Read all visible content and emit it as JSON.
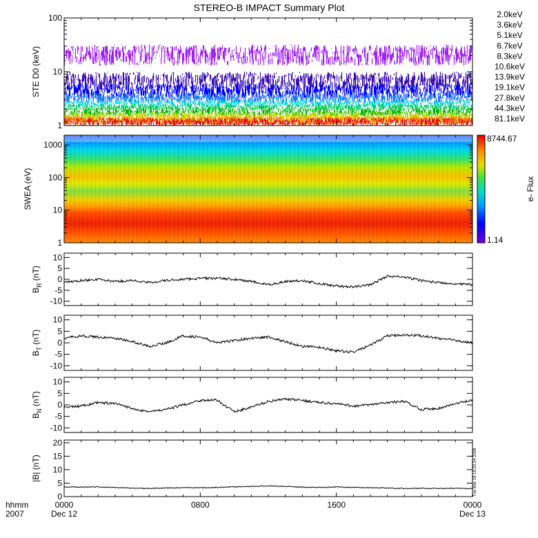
{
  "chart_data": {
    "title": "STEREO-B IMPACT Summary Plot",
    "x_axis": {
      "label_top": "hhmm",
      "label_bottom": "2007",
      "ticks": [
        {
          "hours": 0,
          "label": "0000",
          "sublabel": "Dec 12"
        },
        {
          "hours": 8,
          "label": "0800",
          "sublabel": ""
        },
        {
          "hours": 16,
          "label": "1600",
          "sublabel": ""
        },
        {
          "hours": 24,
          "label": "0000",
          "sublabel": "Dec 13"
        }
      ],
      "range_hours": [
        0,
        24
      ]
    },
    "stamp": "Tue Mar 18 16:20:24 2008",
    "panels": [
      {
        "id": "ste",
        "type": "line",
        "ylabel": "STE D0 (keV)",
        "yscale": "log",
        "ylim": [
          1,
          100
        ],
        "yticks": [
          1,
          10,
          100
        ],
        "ytick_labels": [
          "1",
          "10",
          "100"
        ],
        "series": [
          {
            "name": "2.0keV",
            "color": "#a020f0",
            "band": [
              13,
              32
            ]
          },
          {
            "name": "3.6keV",
            "color": "#3c10b0",
            "band": [
              4.5,
              10
            ]
          },
          {
            "name": "5.1keV",
            "color": "#0000ff",
            "band": [
              3.2,
              6
            ]
          },
          {
            "name": "6.7keV",
            "color": "#1a78ff",
            "band": [
              2.6,
              4
            ]
          },
          {
            "name": "8.3keV",
            "color": "#00d8d8",
            "band": [
              2.2,
              3
            ]
          },
          {
            "name": "10.6keV",
            "color": "#00c850",
            "band": [
              1.9,
              2.5
            ]
          },
          {
            "name": "13.9keV",
            "color": "#00b000",
            "band": [
              1.5,
              2.1
            ]
          },
          {
            "name": "19.1keV",
            "color": "#a8d800",
            "band": [
              1.3,
              1.8
            ]
          },
          {
            "name": "27.8keV",
            "color": "#f0c800",
            "band": [
              1.1,
              1.6
            ]
          },
          {
            "name": "44.3keV",
            "color": "#ff8000",
            "band": [
              1.0,
              1.5
            ]
          },
          {
            "name": "81.1keV",
            "color": "#e01010",
            "band": [
              1.0,
              1.4
            ]
          }
        ]
      },
      {
        "id": "swea",
        "type": "heatmap",
        "ylabel": "SWEA (eV)",
        "yscale": "log",
        "ylim": [
          1,
          2000
        ],
        "yticks": [
          1,
          10,
          100,
          1000
        ],
        "ytick_labels": [
          "1",
          "10",
          "100",
          "1000"
        ],
        "colorbar": {
          "label": "e- Flux",
          "max_label": "8744.67",
          "min_label": "1.14",
          "max": 8744.67,
          "min": 1.14
        }
      },
      {
        "id": "br",
        "type": "line",
        "ylabel": "B_R (nT)",
        "ylim": [
          -12,
          12
        ],
        "yticks": [
          -10,
          -5,
          0,
          5,
          10
        ],
        "ytick_labels": [
          "-10",
          "-5",
          "0",
          "5",
          "10"
        ],
        "x": [
          0,
          1,
          2,
          3,
          4,
          5,
          6,
          7,
          8,
          9,
          10,
          11,
          12,
          13,
          14,
          15,
          16,
          17,
          18,
          19,
          20,
          21,
          22,
          23,
          24
        ],
        "values": [
          -1.5,
          -0.5,
          0,
          -1,
          -0.5,
          -1.5,
          -0.5,
          0,
          0.5,
          0.5,
          0,
          -1,
          -2.5,
          -1,
          -0.5,
          -2,
          -3,
          -3.5,
          -2.5,
          1.5,
          1,
          -0.5,
          -1.5,
          -2,
          -2.5
        ]
      },
      {
        "id": "bt",
        "type": "line",
        "ylabel": "B_T (nT)",
        "ylim": [
          -12,
          12
        ],
        "yticks": [
          -10,
          -5,
          0,
          5,
          10
        ],
        "ytick_labels": [
          "-10",
          "-5",
          "0",
          "5",
          "10"
        ],
        "x": [
          0,
          1,
          2,
          3,
          4,
          5,
          6,
          7,
          8,
          9,
          10,
          11,
          12,
          13,
          14,
          15,
          16,
          17,
          18,
          19,
          20,
          21,
          22,
          23,
          24
        ],
        "values": [
          2,
          3,
          2.5,
          2,
          0.5,
          -1.5,
          0,
          3,
          2.5,
          0,
          1,
          2,
          2.5,
          0.5,
          -1.5,
          -2,
          -3.5,
          -4,
          -1,
          3,
          3.5,
          3,
          2,
          1,
          0
        ]
      },
      {
        "id": "bn",
        "type": "line",
        "ylabel": "B_N (nT)",
        "ylim": [
          -12,
          12
        ],
        "yticks": [
          -10,
          -5,
          0,
          5,
          10
        ],
        "ytick_labels": [
          "-10",
          "-5",
          "0",
          "5",
          "10"
        ],
        "x": [
          0,
          1,
          2,
          3,
          4,
          5,
          6,
          7,
          8,
          9,
          10,
          11,
          12,
          13,
          14,
          15,
          16,
          17,
          18,
          19,
          20,
          21,
          22,
          23,
          24
        ],
        "values": [
          -1,
          -0.5,
          1,
          0.5,
          -1.5,
          -3,
          -2,
          0,
          2,
          2,
          -3,
          -1,
          1.5,
          2.5,
          2,
          1,
          0.5,
          -0.5,
          0,
          1,
          1.5,
          -2,
          -1.5,
          0.5,
          2
        ]
      },
      {
        "id": "b",
        "type": "line",
        "ylabel": "|B| (nT)",
        "ylim": [
          0,
          21
        ],
        "yticks": [
          0,
          5,
          10,
          15,
          20
        ],
        "ytick_labels": [
          "0",
          "5",
          "10",
          "15",
          "20"
        ],
        "x": [
          0,
          1,
          2,
          3,
          4,
          5,
          6,
          7,
          8,
          9,
          10,
          11,
          12,
          13,
          14,
          15,
          16,
          17,
          18,
          19,
          20,
          21,
          22,
          23,
          24
        ],
        "values": [
          3.5,
          3.6,
          3.6,
          3.4,
          3.2,
          3,
          3.2,
          3.3,
          3.3,
          3.4,
          3.6,
          3.8,
          4,
          3.8,
          3.5,
          3.4,
          3.6,
          3.4,
          3.3,
          3.2,
          3,
          3.1,
          3,
          3.1,
          3
        ]
      }
    ]
  }
}
